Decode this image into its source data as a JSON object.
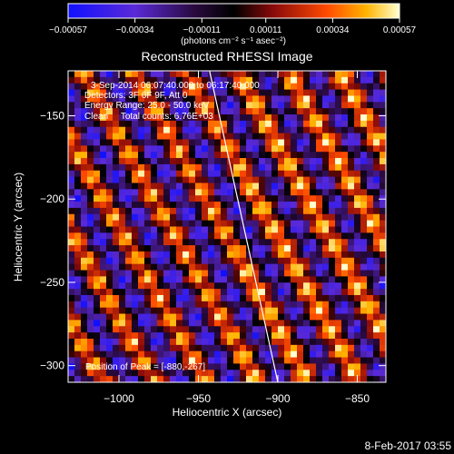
{
  "chart_data": {
    "type": "heatmap",
    "title": "Reconstructed RHESSI Image",
    "xlabel": "Heliocentric X (arcsec)",
    "ylabel": "Heliocentric Y (arcsec)",
    "xlim": [
      -1032,
      -832
    ],
    "ylim": [
      -310,
      -123
    ],
    "x_ticks": [
      -1000,
      -950,
      -900,
      -850
    ],
    "y_ticks": [
      -300,
      -250,
      -200,
      -150
    ],
    "x_tick_labels": [
      "−1000",
      "−950",
      "−900",
      "−850"
    ],
    "y_tick_labels": [
      "−300",
      "−250",
      "−200",
      "−150"
    ],
    "colorbar": {
      "min": -0.00057,
      "max": 0.00057,
      "ticks": [
        -0.00057,
        -0.00034,
        -0.00011,
        0.00011,
        0.00034,
        0.00057
      ],
      "tick_labels": [
        "−0.00057",
        "−0.00034",
        "−0.00011",
        "0.00011",
        "0.00034",
        "0.00057"
      ],
      "unit_label": "(photons cm⁻² s⁻¹ asec⁻²)"
    },
    "limb_line": {
      "x": [
        -943,
        -900
      ],
      "y": [
        -123,
        -310
      ]
    },
    "annotations": [
      "3-Sep-2014 06:07:40.000 to 06:17:40.000",
      "Detectors: 3F 6F 9F, Att 0",
      "Energy Range: 25.0 - 50.0 keV",
      "Clean     Total counts: 6.76E+03"
    ],
    "peak_label": "Position of Peak = [-880,-267]",
    "timestamp": "8-Feb-2017 03:55"
  }
}
